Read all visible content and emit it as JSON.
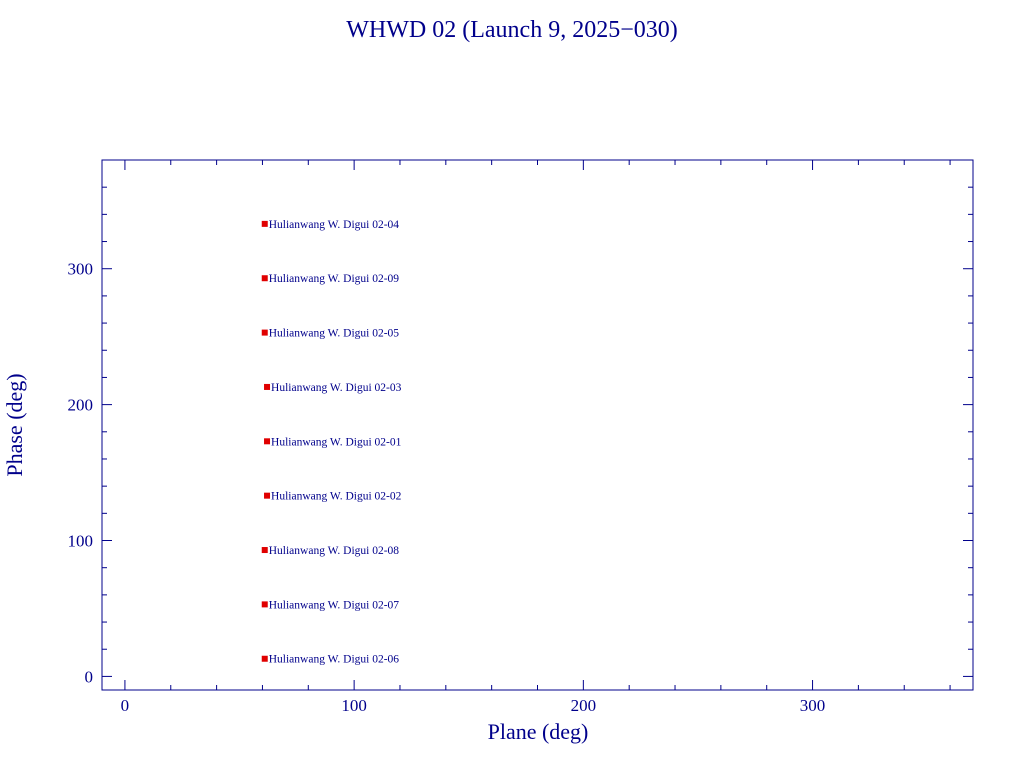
{
  "chart_data": {
    "type": "scatter",
    "title": "WHWD 02 (Launch 9, 2025−030)",
    "xlabel": "Plane (deg)",
    "ylabel": "Phase (deg)",
    "xlim": [
      -10,
      370
    ],
    "ylim": [
      -10,
      380
    ],
    "x_ticks": [
      0,
      100,
      200,
      300
    ],
    "y_ticks": [
      0,
      100,
      200,
      300
    ],
    "x_tick_labels": [
      "0",
      "100",
      "200",
      "300"
    ],
    "y_tick_labels": [
      "0",
      "100",
      "200",
      "300"
    ],
    "x_minor_step": 20,
    "y_minor_step": 20,
    "grid": false,
    "marker_color": "#e00000",
    "text_color": "#00008b",
    "axis_color": "#00008b",
    "points": [
      {
        "x": 61,
        "y": 333,
        "label": "Hulianwang W. Digui 02-04"
      },
      {
        "x": 61,
        "y": 293,
        "label": "Hulianwang W. Digui 02-09"
      },
      {
        "x": 61,
        "y": 253,
        "label": "Hulianwang W. Digui 02-05"
      },
      {
        "x": 62,
        "y": 213,
        "label": "Hulianwang W. Digui 02-03"
      },
      {
        "x": 62,
        "y": 173,
        "label": "Hulianwang W. Digui 02-01"
      },
      {
        "x": 62,
        "y": 133,
        "label": "Hulianwang W. Digui 02-02"
      },
      {
        "x": 61,
        "y": 93,
        "label": "Hulianwang W. Digui 02-08"
      },
      {
        "x": 61,
        "y": 53,
        "label": "Hulianwang W. Digui 02-07"
      },
      {
        "x": 61,
        "y": 13,
        "label": "Hulianwang W. Digui 02-06"
      }
    ]
  }
}
